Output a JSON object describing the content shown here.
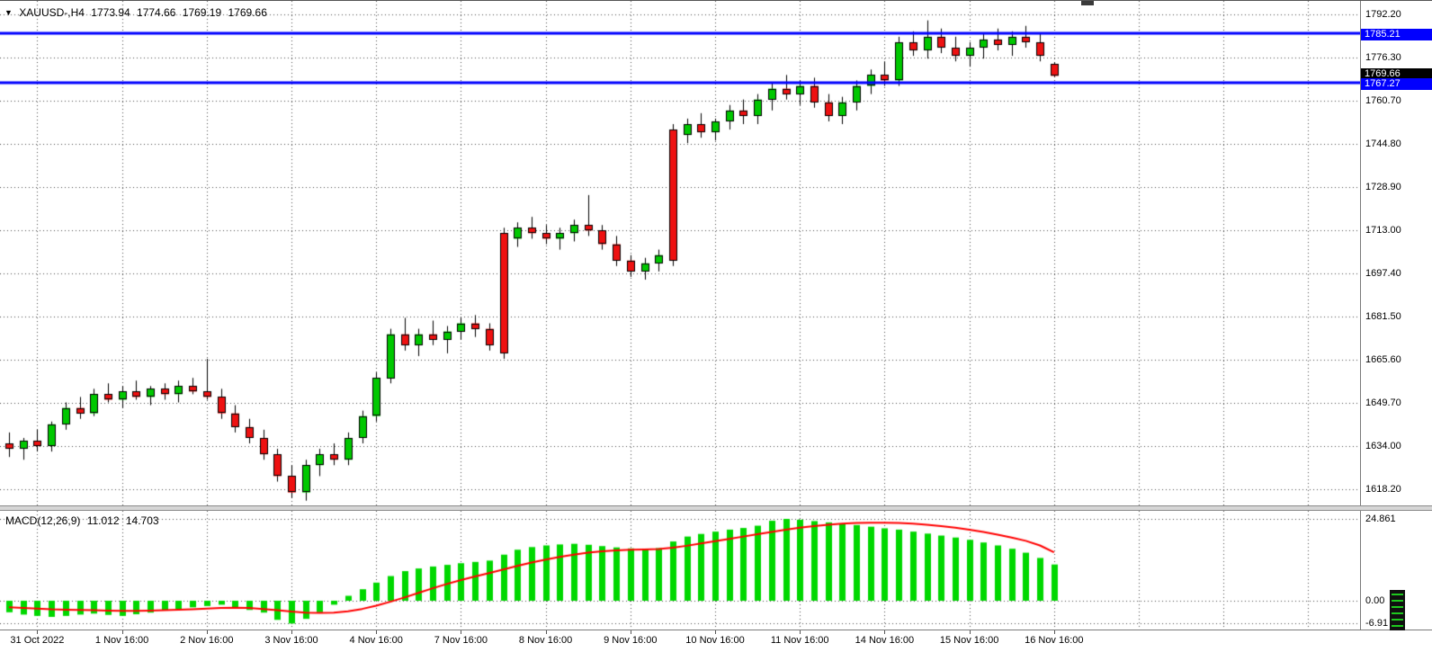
{
  "header": {
    "dropdown_icon": "▼",
    "symbol_period": "XAUUSD-,H4",
    "open": "1773.94",
    "high": "1774.66",
    "low": "1769.19",
    "close": "1769.66"
  },
  "macd_label": {
    "name": "MACD(12,26,9)",
    "main_value": "11.012",
    "signal_value": "14.703"
  },
  "price_axis": {
    "labels": [
      "1792.20",
      "1776.30",
      "1760.70",
      "1744.80",
      "1728.90",
      "1713.00",
      "1697.40",
      "1681.50",
      "1665.60",
      "1649.70",
      "1634.00",
      "1618.20"
    ],
    "line_labels": [
      {
        "text": "1785.21",
        "price": 1785.21
      },
      {
        "text": "1767.27",
        "price": 1767.27
      }
    ],
    "current": {
      "text": "1769.66",
      "price": 1769.66
    }
  },
  "macd_axis": {
    "labels": [
      {
        "text": "24.861",
        "value": 24.861
      },
      {
        "text": "0.00",
        "value": 0
      },
      {
        "text": "-6.91",
        "value": -6.91
      }
    ]
  },
  "time_axis": {
    "labels": [
      "31 Oct 2022",
      "1 Nov 16:00",
      "2 Nov 16:00",
      "3 Nov 16:00",
      "4 Nov 16:00",
      "7 Nov 16:00",
      "8 Nov 16:00",
      "9 Nov 16:00",
      "10 Nov 16:00",
      "11 Nov 16:00",
      "14 Nov 16:00",
      "15 Nov 16:00",
      "16 Nov 16:00"
    ]
  },
  "chart_data": {
    "type": "candlestick",
    "symbol": "XAUUSD-",
    "timeframe": "H4",
    "title": "XAUUSD-,H4 1773.94 1774.66 1769.19 1769.66",
    "ylim": [
      1612,
      1795
    ],
    "grid": true,
    "horizontal_lines": [
      1785.21,
      1767.27
    ],
    "current_price": 1769.66,
    "x_tick_labels": [
      "31 Oct 2022",
      "1 Nov 16:00",
      "2 Nov 16:00",
      "3 Nov 16:00",
      "4 Nov 16:00",
      "7 Nov 16:00",
      "8 Nov 16:00",
      "9 Nov 16:00",
      "10 Nov 16:00",
      "11 Nov 16:00",
      "14 Nov 16:00",
      "15 Nov 16:00",
      "16 Nov 16:00"
    ],
    "candles_ohlc": [
      [
        1635,
        1639,
        1630,
        1633
      ],
      [
        1633,
        1637,
        1629,
        1636
      ],
      [
        1636,
        1640,
        1632,
        1634
      ],
      [
        1634,
        1643,
        1632,
        1642
      ],
      [
        1642,
        1650,
        1640,
        1648
      ],
      [
        1648,
        1652,
        1644,
        1646
      ],
      [
        1646,
        1655,
        1645,
        1653
      ],
      [
        1653,
        1657,
        1650,
        1651
      ],
      [
        1651,
        1656,
        1648,
        1654
      ],
      [
        1654,
        1658,
        1651,
        1652
      ],
      [
        1652,
        1656,
        1649,
        1655
      ],
      [
        1655,
        1657,
        1651,
        1653
      ],
      [
        1653,
        1658,
        1650,
        1656
      ],
      [
        1656,
        1659,
        1653,
        1654
      ],
      [
        1654,
        1666,
        1651,
        1652
      ],
      [
        1652,
        1655,
        1644,
        1646
      ],
      [
        1646,
        1649,
        1639,
        1641
      ],
      [
        1641,
        1644,
        1635,
        1637
      ],
      [
        1637,
        1640,
        1629,
        1631
      ],
      [
        1631,
        1633,
        1621,
        1623
      ],
      [
        1623,
        1627,
        1615,
        1617
      ],
      [
        1617,
        1629,
        1614,
        1627
      ],
      [
        1627,
        1633,
        1623,
        1631
      ],
      [
        1631,
        1635,
        1627,
        1629
      ],
      [
        1629,
        1639,
        1627,
        1637
      ],
      [
        1637,
        1647,
        1635,
        1645
      ],
      [
        1645,
        1661,
        1643,
        1659
      ],
      [
        1659,
        1677,
        1657,
        1675
      ],
      [
        1675,
        1681,
        1669,
        1671
      ],
      [
        1671,
        1677,
        1667,
        1675
      ],
      [
        1675,
        1680,
        1671,
        1673
      ],
      [
        1673,
        1678,
        1668,
        1676
      ],
      [
        1676,
        1681,
        1673,
        1679
      ],
      [
        1679,
        1682,
        1674,
        1677
      ],
      [
        1677,
        1679,
        1669,
        1671
      ],
      [
        1712,
        1714,
        1666,
        1668
      ],
      [
        1710,
        1716,
        1707,
        1714
      ],
      [
        1714,
        1718,
        1710,
        1712
      ],
      [
        1712,
        1715,
        1708,
        1710
      ],
      [
        1710,
        1714,
        1706,
        1712
      ],
      [
        1712,
        1717,
        1709,
        1715
      ],
      [
        1715,
        1726,
        1711,
        1713
      ],
      [
        1713,
        1715,
        1706,
        1708
      ],
      [
        1708,
        1711,
        1700,
        1702
      ],
      [
        1702,
        1704,
        1696,
        1698
      ],
      [
        1698,
        1703,
        1695,
        1701
      ],
      [
        1701,
        1706,
        1698,
        1704
      ],
      [
        1750,
        1752,
        1700,
        1702
      ],
      [
        1748,
        1754,
        1745,
        1752
      ],
      [
        1752,
        1756,
        1747,
        1749
      ],
      [
        1749,
        1754,
        1746,
        1753
      ],
      [
        1753,
        1759,
        1750,
        1757
      ],
      [
        1757,
        1761,
        1752,
        1755
      ],
      [
        1755,
        1763,
        1752,
        1761
      ],
      [
        1761,
        1767,
        1757,
        1765
      ],
      [
        1765,
        1770,
        1761,
        1763
      ],
      [
        1763,
        1768,
        1759,
        1766
      ],
      [
        1766,
        1769,
        1758,
        1760
      ],
      [
        1760,
        1763,
        1753,
        1755
      ],
      [
        1755,
        1762,
        1752,
        1760
      ],
      [
        1760,
        1768,
        1757,
        1766
      ],
      [
        1766,
        1772,
        1763,
        1770
      ],
      [
        1770,
        1775,
        1766,
        1768
      ],
      [
        1768,
        1784,
        1766,
        1782
      ],
      [
        1782,
        1786,
        1777,
        1779
      ],
      [
        1779,
        1790,
        1776,
        1784
      ],
      [
        1784,
        1787,
        1778,
        1780
      ],
      [
        1780,
        1784,
        1775,
        1777
      ],
      [
        1777,
        1782,
        1773,
        1780
      ],
      [
        1780,
        1785,
        1776,
        1783
      ],
      [
        1783,
        1787,
        1779,
        1781
      ],
      [
        1781,
        1786,
        1777,
        1784
      ],
      [
        1784,
        1788,
        1780,
        1782
      ],
      [
        1782,
        1785,
        1775,
        1777
      ],
      [
        1773.94,
        1774.66,
        1769.19,
        1769.66
      ]
    ],
    "indicator": {
      "type": "bar",
      "name": "MACD(12,26,9)",
      "current_main": 11.012,
      "current_signal": 14.703,
      "ylim": [
        -6.91,
        24.861
      ],
      "histogram": [
        -3.5,
        -4.2,
        -4.6,
        -4.9,
        -4.6,
        -4.2,
        -3.9,
        -4.3,
        -4.6,
        -4.1,
        -3.6,
        -3.0,
        -2.5,
        -2.0,
        -1.6,
        -1.2,
        -2.0,
        -2.8,
        -3.6,
        -5.8,
        -6.91,
        -5.5,
        -3.5,
        -1.2,
        1.5,
        3.5,
        5.5,
        7.5,
        9.0,
        9.8,
        10.4,
        10.9,
        11.4,
        11.8,
        12.2,
        14.0,
        15.5,
        16.3,
        16.8,
        17.1,
        17.3,
        17.0,
        16.6,
        16.2,
        15.9,
        15.8,
        16.0,
        18.0,
        19.5,
        20.3,
        21.0,
        21.6,
        22.1,
        22.8,
        24.3,
        24.861,
        24.6,
        24.2,
        23.8,
        23.4,
        23.0,
        22.5,
        22.0,
        21.6,
        21.0,
        20.4,
        19.8,
        19.2,
        18.5,
        17.7,
        16.8,
        15.8,
        14.6,
        13.0,
        11.012
      ],
      "signal": [
        -2.0,
        -2.2,
        -2.4,
        -2.6,
        -2.7,
        -2.8,
        -2.9,
        -3.0,
        -3.05,
        -3.05,
        -3.0,
        -2.9,
        -2.75,
        -2.6,
        -2.4,
        -2.2,
        -2.1,
        -2.2,
        -2.5,
        -2.9,
        -3.3,
        -3.6,
        -3.7,
        -3.6,
        -3.2,
        -2.5,
        -1.5,
        -0.3,
        1.0,
        2.4,
        3.8,
        5.1,
        6.3,
        7.4,
        8.4,
        9.5,
        10.6,
        11.6,
        12.5,
        13.3,
        14.0,
        14.6,
        15.0,
        15.3,
        15.5,
        15.6,
        15.7,
        16.1,
        16.7,
        17.4,
        18.1,
        18.8,
        19.5,
        20.2,
        20.9,
        21.6,
        22.2,
        22.7,
        23.1,
        23.4,
        23.6,
        23.7,
        23.7,
        23.6,
        23.4,
        23.1,
        22.7,
        22.2,
        21.6,
        20.9,
        20.1,
        19.2,
        18.2,
        16.8,
        14.703
      ]
    }
  },
  "colors": {
    "background": "#ffffff",
    "grid": "#4a4a4a",
    "bull_candle": "#00c800",
    "bear_candle": "#ee1111",
    "candle_outline": "#000000",
    "macd_histogram": "#00d800",
    "macd_signal": "#ff0000",
    "level_line_blue": "#0100fe",
    "current_price_badge": "#000000",
    "text": "#000000"
  }
}
